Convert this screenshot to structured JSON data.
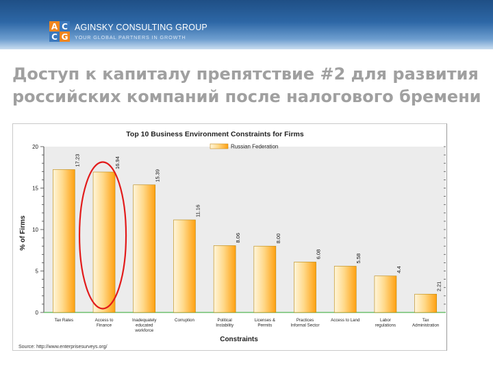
{
  "branding": {
    "logo_letters": [
      "A",
      "C",
      "C",
      "G"
    ],
    "name": "AGINSKY CONSULTING GROUP",
    "tagline": "YOUR GLOBAL PARTNERS IN GROWTH",
    "colors": {
      "header_dark": "#1f4f85",
      "logo_orange": "#f0861e",
      "logo_blue": "#3b78bd"
    }
  },
  "slide": {
    "title_line1": "Доступ к капиталу препятствие #2 для развития",
    "title_line2": "российских компаний после налогового бремени"
  },
  "chart_data": {
    "type": "bar",
    "title": "Top 10 Business Environment Constraints for Firms",
    "xlabel": "Constraints",
    "ylabel": "% of Firms",
    "ylim": [
      0,
      20
    ],
    "yticks": [
      0,
      5,
      10,
      15,
      20
    ],
    "grid": false,
    "legend": "top-center",
    "source": "Source: http://www.enterprisesurveys.org/",
    "categories": [
      [
        "Tax Rates"
      ],
      [
        "Access to",
        "Finance"
      ],
      [
        "Inadequately",
        "educated",
        "workforce"
      ],
      [
        "Corruption"
      ],
      [
        "Political",
        "Instability"
      ],
      [
        "Licenses &",
        "Permits"
      ],
      [
        "Practices",
        "Informal Sector"
      ],
      [
        "Access to Land"
      ],
      [
        "Labor",
        "regulations"
      ],
      [
        "Tax",
        "Administration"
      ]
    ],
    "series": [
      {
        "name": "Russian Federation",
        "color": "#ffb42a",
        "values": [
          17.23,
          16.94,
          15.39,
          11.16,
          8.06,
          8.0,
          6.08,
          5.58,
          4.4,
          2.21
        ],
        "labels": [
          "17.23",
          "16.94",
          "15.39",
          "11.16",
          "8.06",
          "8.00",
          "6.08",
          "5.58",
          "4.4",
          "2.21"
        ]
      }
    ],
    "annotation": {
      "type": "ellipse",
      "highlight_category_index": 1,
      "color": "#e21b1b"
    }
  }
}
